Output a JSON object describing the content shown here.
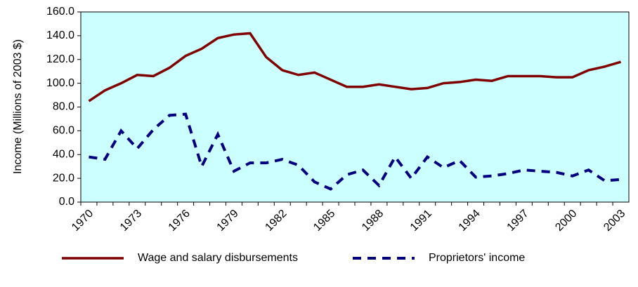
{
  "chart_data": {
    "type": "line",
    "y_label": "Income (Millions of 2003 $)",
    "categories": [
      "1970",
      null,
      null,
      "1973",
      null,
      null,
      "1976",
      null,
      null,
      "1979",
      null,
      null,
      "1982",
      null,
      null,
      "1985",
      null,
      null,
      "1988",
      null,
      null,
      "1991",
      null,
      null,
      "1994",
      null,
      null,
      "1997",
      null,
      null,
      "2000",
      null,
      null,
      "2003"
    ],
    "series": [
      {
        "name": "Wage and salary disbursements",
        "color": "#800000",
        "dashed": false,
        "values": [
          85,
          94,
          100,
          107,
          106,
          113,
          123,
          129,
          138,
          141,
          142,
          122,
          111,
          107,
          109,
          103,
          97,
          97,
          99,
          97,
          95,
          96,
          100,
          101,
          103,
          102,
          106,
          106,
          106,
          105,
          105,
          111,
          114,
          118
        ]
      },
      {
        "name": "Proprietors' income",
        "color": "#000080",
        "dashed": true,
        "values": [
          38,
          36,
          60,
          45,
          61,
          73,
          74,
          30,
          57,
          26,
          33,
          33,
          36,
          31,
          17,
          11,
          23,
          27,
          14,
          38,
          20,
          38,
          29,
          35,
          21,
          22,
          24,
          27,
          26,
          25,
          22,
          27,
          18,
          19
        ]
      }
    ],
    "ylim": [
      0,
      160
    ],
    "yticks": [
      {
        "value": 0,
        "label": "0.0"
      },
      {
        "value": 20,
        "label": "20.0"
      },
      {
        "value": 40,
        "label": "40.0"
      },
      {
        "value": 60,
        "label": "60.0"
      },
      {
        "value": 80,
        "label": "80.0"
      },
      {
        "value": 100,
        "label": "100.0"
      },
      {
        "value": 120,
        "label": "120.0"
      },
      {
        "value": 140,
        "label": "140.0"
      },
      {
        "value": 160,
        "label": "160.0"
      }
    ],
    "plot_background": "#ccffff",
    "legend": "bottom"
  }
}
